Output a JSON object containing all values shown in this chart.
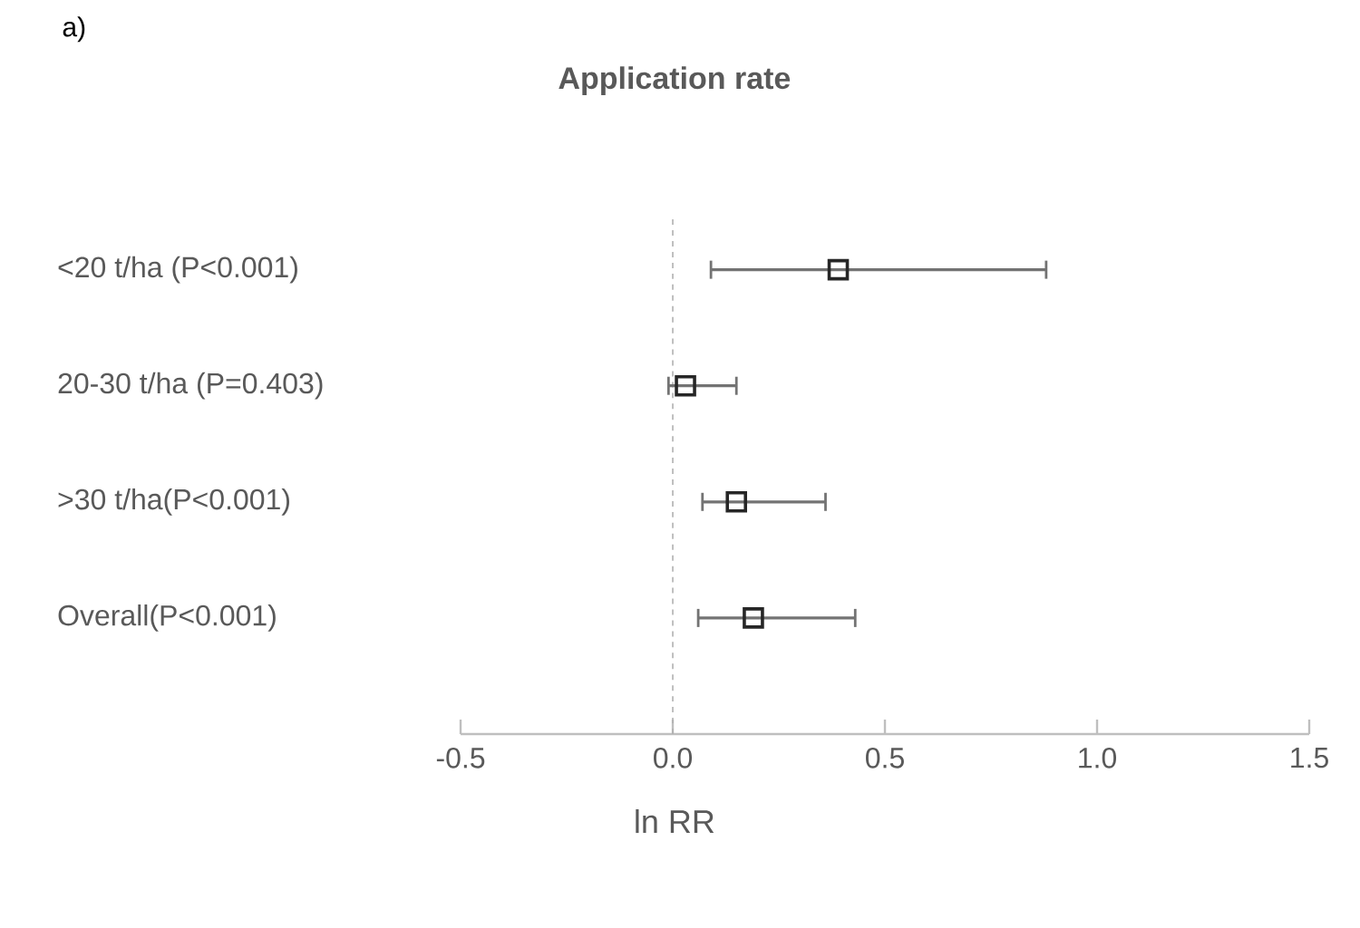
{
  "chart_data": {
    "type": "scatter",
    "orientation": "horizontal",
    "title": "Application rate",
    "xlabel": "ln RR",
    "annotations": [
      "a)"
    ],
    "categories": [
      "<20 t/ha (P<0.001)",
      "20-30 t/ha (P=0.403)",
      ">30 t/ha(P<0.001)",
      "Overall(P<0.001)"
    ],
    "values": [
      0.39,
      0.03,
      0.15,
      0.19
    ],
    "errors": [
      [
        0.09,
        0.88
      ],
      [
        -0.01,
        0.15
      ],
      [
        0.07,
        0.36
      ],
      [
        0.06,
        0.43
      ]
    ],
    "color": "#262626",
    "marker": "square",
    "xlim": [
      -0.5,
      1.5
    ],
    "xticks": [
      -0.5,
      {
        "value": 0,
        "label": "0.0"
      },
      0.5,
      {
        "value": 1,
        "label": "1.0"
      },
      1.5
    ],
    "ref_lines": [
      {
        "axis": "x",
        "value": 0,
        "color": "#b0b0b0",
        "line_style": "dashed"
      }
    ],
    "grid": false
  }
}
